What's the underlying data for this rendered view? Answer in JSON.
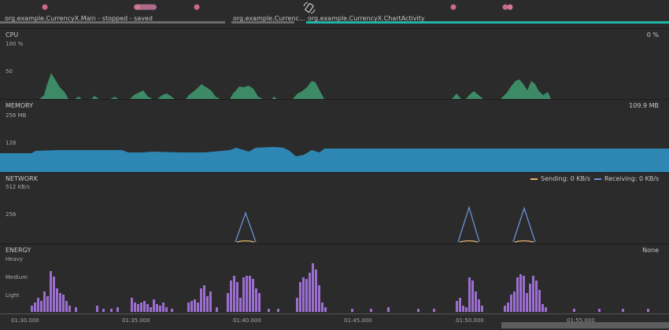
{
  "events": {
    "activities": [
      {
        "label": "org.example.CurrencyX.Main - stopped - saved"
      },
      {
        "label": "org.example.Currenc..."
      },
      {
        "label": "org.example.CurrencyX.ChartActivity"
      }
    ],
    "icon": "rotate-screen-icon"
  },
  "cpu": {
    "title": "CPU",
    "current": "0 %",
    "ticks": [
      "100 %",
      "50"
    ],
    "color": "#3d8a66"
  },
  "memory": {
    "title": "MEMORY",
    "current": "109.9 MB",
    "ticks": [
      "256 MB",
      "128"
    ],
    "color": "#2e86b3"
  },
  "network": {
    "title": "NETWORK",
    "ticks": [
      "512 KB/s",
      "256"
    ],
    "legend_sending": "Sending: 0 KB/s",
    "legend_receiving": "Receiving: 0 KB/s",
    "sending_color": "#e8b66e",
    "receiving_color": "#6b8fd6"
  },
  "energy": {
    "title": "ENERGY",
    "current": "None",
    "ticks": [
      "Heavy",
      "Medium",
      "Light"
    ],
    "color": "#9b6ed0"
  },
  "timeline": {
    "labels": [
      "01:30.000",
      "01:35.000",
      "01:40.000",
      "01:45.000",
      "01:50.000",
      "01:55.000"
    ]
  }
}
